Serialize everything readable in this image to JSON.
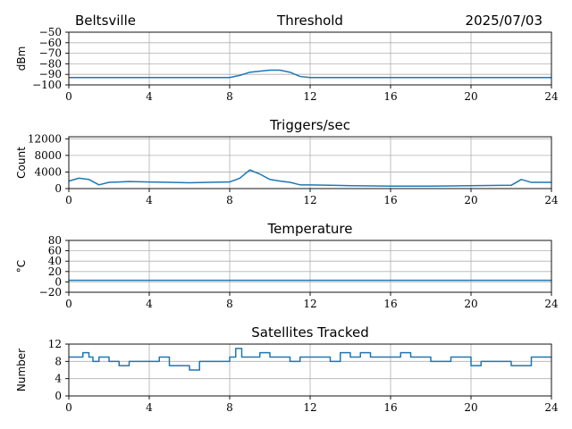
{
  "header": {
    "location": "Beltsville",
    "date": "2025/07/03"
  },
  "style": {
    "line_color": "#1f77b4"
  },
  "chart_data": [
    {
      "type": "line",
      "title": "Threshold",
      "ylabel": "dBm",
      "xlim": [
        0,
        24
      ],
      "ylim": [
        -100,
        -50
      ],
      "xticks": [
        "0",
        "4",
        "8",
        "12",
        "16",
        "20",
        "24"
      ],
      "yticks": [
        "−50",
        "−60",
        "−70",
        "−80",
        "−90",
        "−100"
      ],
      "ytick_values": [
        -50,
        -60,
        -70,
        -80,
        -90,
        -100
      ],
      "grid": true,
      "x": [
        0,
        2,
        4,
        6,
        8,
        8.5,
        9,
        9.5,
        10,
        10.5,
        11,
        11.5,
        12,
        14,
        16,
        18,
        20,
        22,
        24
      ],
      "y": [
        -93,
        -93,
        -93,
        -93,
        -93,
        -91,
        -88,
        -87,
        -86,
        -86,
        -88,
        -92,
        -93,
        -93,
        -93,
        -93,
        -93,
        -93,
        -93
      ]
    },
    {
      "type": "line",
      "title": "Triggers/sec",
      "ylabel": "Count",
      "xlim": [
        0,
        24
      ],
      "ylim": [
        0,
        12500
      ],
      "xticks": [
        "0",
        "4",
        "8",
        "12",
        "16",
        "20",
        "24"
      ],
      "yticks": [
        "12000",
        "8000",
        "4000",
        "0"
      ],
      "ytick_values": [
        12000,
        8000,
        4000,
        0
      ],
      "grid": true,
      "x": [
        0,
        0.5,
        1,
        1.5,
        2,
        3,
        4,
        5,
        6,
        7,
        8,
        8.5,
        9,
        9.5,
        10,
        10.5,
        11,
        11.5,
        12,
        14,
        16,
        18,
        20,
        22,
        22.5,
        23,
        24
      ],
      "y": [
        1800,
        2500,
        2200,
        900,
        1500,
        1700,
        1600,
        1500,
        1400,
        1500,
        1600,
        2500,
        4500,
        3500,
        2200,
        1800,
        1500,
        900,
        900,
        700,
        600,
        600,
        700,
        800,
        2200,
        1500,
        1500
      ]
    },
    {
      "type": "line",
      "title": "Temperature",
      "ylabel": "°C",
      "xlim": [
        0,
        24
      ],
      "ylim": [
        -20,
        80
      ],
      "xticks": [
        "0",
        "4",
        "8",
        "12",
        "16",
        "20",
        "24"
      ],
      "yticks": [
        "80",
        "60",
        "40",
        "20",
        "0",
        "−20"
      ],
      "ytick_values": [
        80,
        60,
        40,
        20,
        0,
        -20
      ],
      "grid": true,
      "x": [
        0,
        24
      ],
      "y": [
        3,
        3
      ]
    },
    {
      "type": "line",
      "title": "Satellites Tracked",
      "ylabel": "Number",
      "xlim": [
        0,
        24
      ],
      "ylim": [
        0,
        12
      ],
      "xticks": [
        "0",
        "4",
        "8",
        "12",
        "16",
        "20",
        "24"
      ],
      "yticks": [
        "12",
        "8",
        "4",
        "0"
      ],
      "ytick_values": [
        12,
        8,
        4,
        0
      ],
      "grid": true,
      "x": [
        0,
        0.5,
        0.7,
        1,
        1.2,
        1.5,
        2,
        2.5,
        3,
        3.5,
        4,
        4.5,
        5,
        5.5,
        6,
        6.5,
        7,
        7.5,
        8,
        8.3,
        8.6,
        9,
        9.5,
        10,
        10.5,
        11,
        11.5,
        12,
        12.5,
        13,
        13.5,
        14,
        14.5,
        15,
        15.5,
        16,
        16.5,
        17,
        17.5,
        18,
        18.5,
        19,
        19.5,
        20,
        20.5,
        21,
        21.5,
        22,
        22.5,
        23,
        23.5,
        24
      ],
      "y": [
        9,
        9,
        10,
        9,
        8,
        9,
        8,
        7,
        8,
        8,
        8,
        9,
        7,
        7,
        6,
        8,
        8,
        8,
        9,
        11,
        9,
        9,
        10,
        9,
        9,
        8,
        9,
        9,
        9,
        8,
        10,
        9,
        10,
        9,
        9,
        9,
        10,
        9,
        9,
        8,
        8,
        9,
        9,
        7,
        8,
        8,
        8,
        7,
        7,
        9,
        9,
        9
      ]
    }
  ]
}
